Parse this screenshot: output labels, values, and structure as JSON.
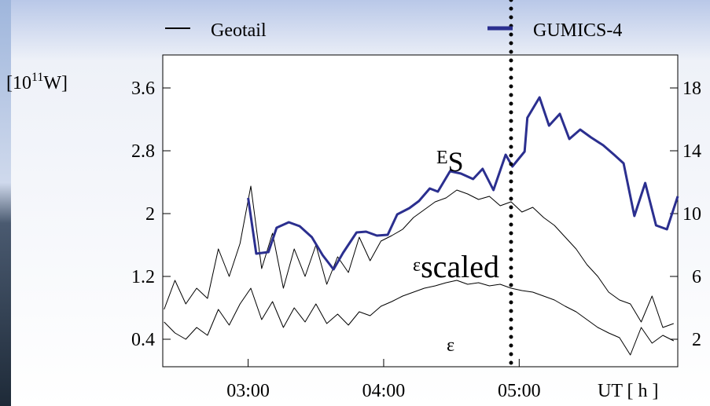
{
  "chart_data": {
    "type": "line",
    "legend_position": "top",
    "y_label": {
      "pre": "[10",
      "sup": "11",
      "post": "W]"
    },
    "x_label": "UT  [ h ]",
    "xlim": [
      2.37,
      6.17
    ],
    "xticks": [
      {
        "value": 3,
        "label": "03:00"
      },
      {
        "value": 4,
        "label": "04:00"
      },
      {
        "value": 5,
        "label": "05:00"
      }
    ],
    "ylim": [
      0.05,
      4.02
    ],
    "yticks": [
      0.4,
      1.2,
      2.0,
      2.8,
      3.6
    ],
    "y2lim": [
      0.25,
      20.1
    ],
    "y2ticks": [
      2,
      6,
      10,
      14,
      18
    ],
    "vline": 4.94,
    "annotations": [
      {
        "text": "E",
        "sub": "S"
      },
      {
        "text": "ε",
        "sub": "scaled"
      },
      {
        "text": "ε"
      }
    ],
    "series": [
      {
        "name": "Geotail",
        "color": "#000000",
        "x": [
          2.38,
          2.46,
          2.54,
          2.62,
          2.7,
          2.78,
          2.86,
          2.94,
          3.02,
          3.1,
          3.18,
          3.26,
          3.34,
          3.42,
          3.5,
          3.58,
          3.66,
          3.74,
          3.82,
          3.9,
          3.98,
          4.06,
          4.14,
          4.22,
          4.3,
          4.38,
          4.46,
          4.54,
          4.62,
          4.7,
          4.78,
          4.86,
          4.94,
          5.02,
          5.1,
          5.18,
          5.26,
          5.34,
          5.42,
          5.5,
          5.58,
          5.66,
          5.74,
          5.82,
          5.9,
          5.98,
          6.06,
          6.14
        ],
        "values": [
          0.78,
          1.15,
          0.85,
          1.05,
          0.92,
          1.55,
          1.2,
          1.62,
          2.35,
          1.3,
          1.75,
          1.05,
          1.55,
          1.2,
          1.6,
          1.1,
          1.45,
          1.25,
          1.7,
          1.4,
          1.65,
          1.72,
          1.8,
          1.95,
          2.05,
          2.15,
          2.2,
          2.3,
          2.25,
          2.18,
          2.22,
          2.1,
          2.15,
          2.02,
          2.08,
          1.95,
          1.85,
          1.7,
          1.55,
          1.35,
          1.2,
          1.0,
          0.9,
          0.85,
          0.62,
          0.95,
          0.55,
          0.6
        ]
      },
      {
        "color": "#000000",
        "x": [
          2.38,
          2.46,
          2.54,
          2.62,
          2.7,
          2.78,
          2.86,
          2.94,
          3.02,
          3.1,
          3.18,
          3.26,
          3.34,
          3.42,
          3.5,
          3.58,
          3.66,
          3.74,
          3.82,
          3.9,
          3.98,
          4.06,
          4.14,
          4.22,
          4.3,
          4.38,
          4.46,
          4.54,
          4.62,
          4.7,
          4.78,
          4.86,
          4.94,
          5.02,
          5.1,
          5.18,
          5.26,
          5.34,
          5.42,
          5.5,
          5.58,
          5.66,
          5.74,
          5.82,
          5.9,
          5.98,
          6.06,
          6.14
        ],
        "values": [
          0.62,
          0.48,
          0.4,
          0.55,
          0.45,
          0.78,
          0.58,
          0.85,
          1.05,
          0.65,
          0.88,
          0.55,
          0.8,
          0.62,
          0.85,
          0.6,
          0.72,
          0.58,
          0.75,
          0.7,
          0.82,
          0.88,
          0.95,
          1.0,
          1.05,
          1.08,
          1.12,
          1.15,
          1.1,
          1.12,
          1.08,
          1.1,
          1.05,
          1.02,
          1.0,
          0.95,
          0.9,
          0.82,
          0.75,
          0.65,
          0.55,
          0.48,
          0.42,
          0.2,
          0.55,
          0.35,
          0.45,
          0.38
        ]
      },
      {
        "name": "GUMICS-4",
        "color": "#2b2f8f",
        "x": [
          3.0,
          3.06,
          3.15,
          3.21,
          3.3,
          3.38,
          3.47,
          3.55,
          3.63,
          3.7,
          3.8,
          3.87,
          3.95,
          4.03,
          4.1,
          4.19,
          4.26,
          4.34,
          4.4,
          4.49,
          4.57,
          4.66,
          4.73,
          4.81,
          4.9,
          4.95,
          5.04,
          5.06,
          5.15,
          5.22,
          5.3,
          5.37,
          5.45,
          5.53,
          5.62,
          5.7,
          5.77,
          5.85,
          5.93,
          6.01,
          6.09,
          6.17
        ],
        "values": [
          2.2,
          1.49,
          1.51,
          1.82,
          1.89,
          1.84,
          1.7,
          1.47,
          1.29,
          1.5,
          1.76,
          1.77,
          1.72,
          1.73,
          1.99,
          2.07,
          2.16,
          2.32,
          2.28,
          2.54,
          2.51,
          2.44,
          2.57,
          2.3,
          2.75,
          2.6,
          2.79,
          3.22,
          3.48,
          3.12,
          3.27,
          2.95,
          3.07,
          2.97,
          2.87,
          2.75,
          2.64,
          1.97,
          2.39,
          1.85,
          1.8,
          2.22
        ]
      }
    ]
  }
}
